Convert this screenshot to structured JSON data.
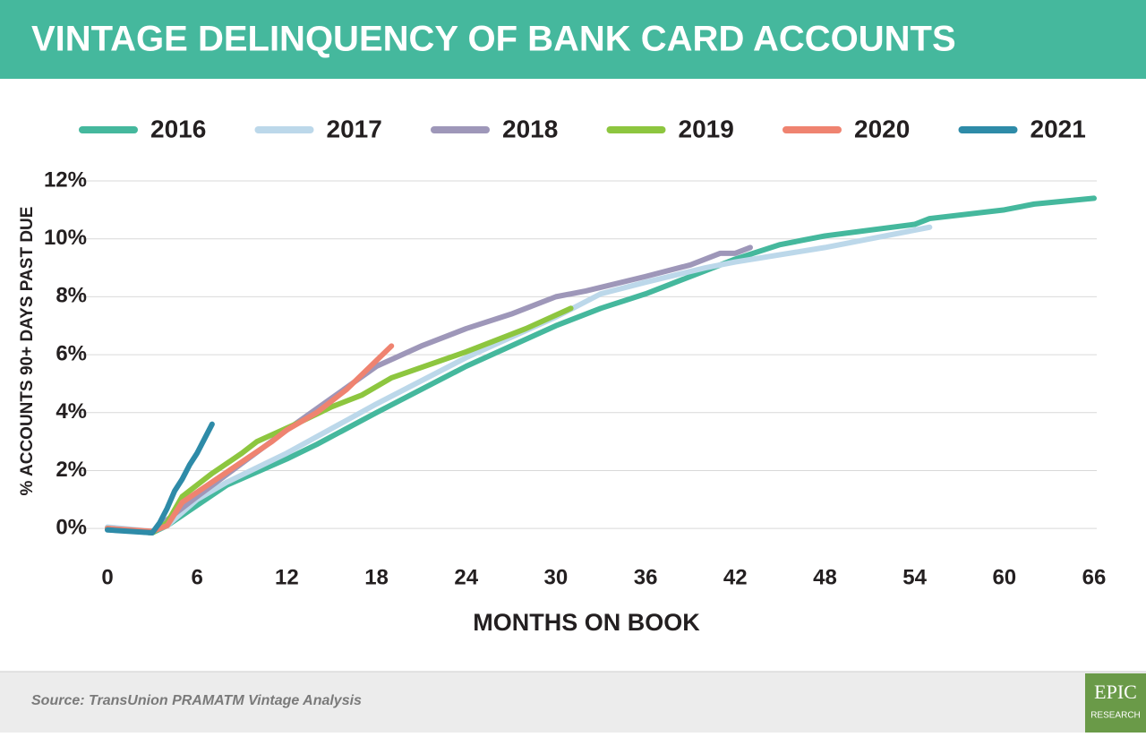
{
  "chart_data": {
    "type": "line",
    "title": "VINTAGE DELINQUENCY OF BANK CARD ACCOUNTS",
    "x_label": "MONTHS ON BOOK",
    "y_label": "% ACCOUNTS 90+ DAYS PAST DUE",
    "xlim": [
      0,
      66
    ],
    "xticks": [
      0,
      6,
      12,
      18,
      24,
      30,
      36,
      42,
      48,
      54,
      60,
      66
    ],
    "ylim": [
      -0.8,
      12
    ],
    "yticks": [
      {
        "value": 0,
        "label": "0%"
      },
      {
        "value": 2,
        "label": "2%"
      },
      {
        "value": 4,
        "label": "4%"
      },
      {
        "value": 6,
        "label": "6%"
      },
      {
        "value": 8,
        "label": "8%"
      },
      {
        "value": 10,
        "label": "10%"
      },
      {
        "value": 12,
        "label": "12%"
      }
    ],
    "grid": true,
    "legend": "top",
    "series": [
      {
        "name": "2016",
        "color": "#45b89d",
        "x": [
          0,
          3,
          4,
          6,
          8,
          12,
          14,
          18,
          24,
          30,
          33,
          36,
          40,
          42,
          45,
          48,
          54,
          55,
          60,
          62,
          66
        ],
        "values": [
          0,
          -0.15,
          0.1,
          0.8,
          1.5,
          2.4,
          2.9,
          4.0,
          5.6,
          7.0,
          7.6,
          8.1,
          8.9,
          9.3,
          9.8,
          10.1,
          10.5,
          10.7,
          11.0,
          11.2,
          11.4
        ]
      },
      {
        "name": "2017",
        "color": "#bcd8ea",
        "x": [
          0,
          3,
          4,
          6,
          8,
          12,
          18,
          24,
          30,
          33,
          36,
          40,
          42,
          48,
          55
        ],
        "values": [
          0.05,
          -0.1,
          0.1,
          1.0,
          1.6,
          2.6,
          4.3,
          5.9,
          7.3,
          8.1,
          8.5,
          9.0,
          9.2,
          9.7,
          10.4
        ]
      },
      {
        "name": "2018",
        "color": "#9e97b9",
        "x": [
          0,
          3,
          4,
          6,
          12,
          15,
          18,
          21,
          24,
          27,
          28,
          30,
          32,
          36,
          39,
          41,
          42,
          43
        ],
        "values": [
          0,
          -0.15,
          0.3,
          1.1,
          3.4,
          4.5,
          5.6,
          6.3,
          6.9,
          7.4,
          7.6,
          8.0,
          8.2,
          8.7,
          9.1,
          9.5,
          9.5,
          9.7
        ]
      },
      {
        "name": "2019",
        "color": "#8dc63f",
        "x": [
          0,
          3,
          4,
          5,
          7,
          9,
          10,
          13,
          15,
          17,
          19,
          24,
          28,
          31
        ],
        "values": [
          0,
          -0.15,
          0.2,
          1.1,
          1.9,
          2.6,
          3.0,
          3.7,
          4.2,
          4.6,
          5.2,
          6.1,
          6.9,
          7.6
        ]
      },
      {
        "name": "2020",
        "color": "#ef8370",
        "x": [
          0,
          3,
          4,
          5,
          7,
          11,
          12,
          14,
          16,
          18,
          19
        ],
        "values": [
          0,
          -0.1,
          0.1,
          0.9,
          1.6,
          3.0,
          3.4,
          4.0,
          4.8,
          5.8,
          6.3
        ]
      },
      {
        "name": "2021",
        "color": "#2e8ba8",
        "x": [
          0,
          3,
          3.5,
          4,
          4.5,
          5,
          5.5,
          6,
          7
        ],
        "values": [
          -0.05,
          -0.15,
          0.2,
          0.7,
          1.3,
          1.7,
          2.2,
          2.6,
          3.6
        ]
      }
    ]
  },
  "footer": {
    "source": "Source: TransUnion PRAMATM Vintage Analysis",
    "logo": "EPIC",
    "logo_sub": "RESEARCH"
  }
}
